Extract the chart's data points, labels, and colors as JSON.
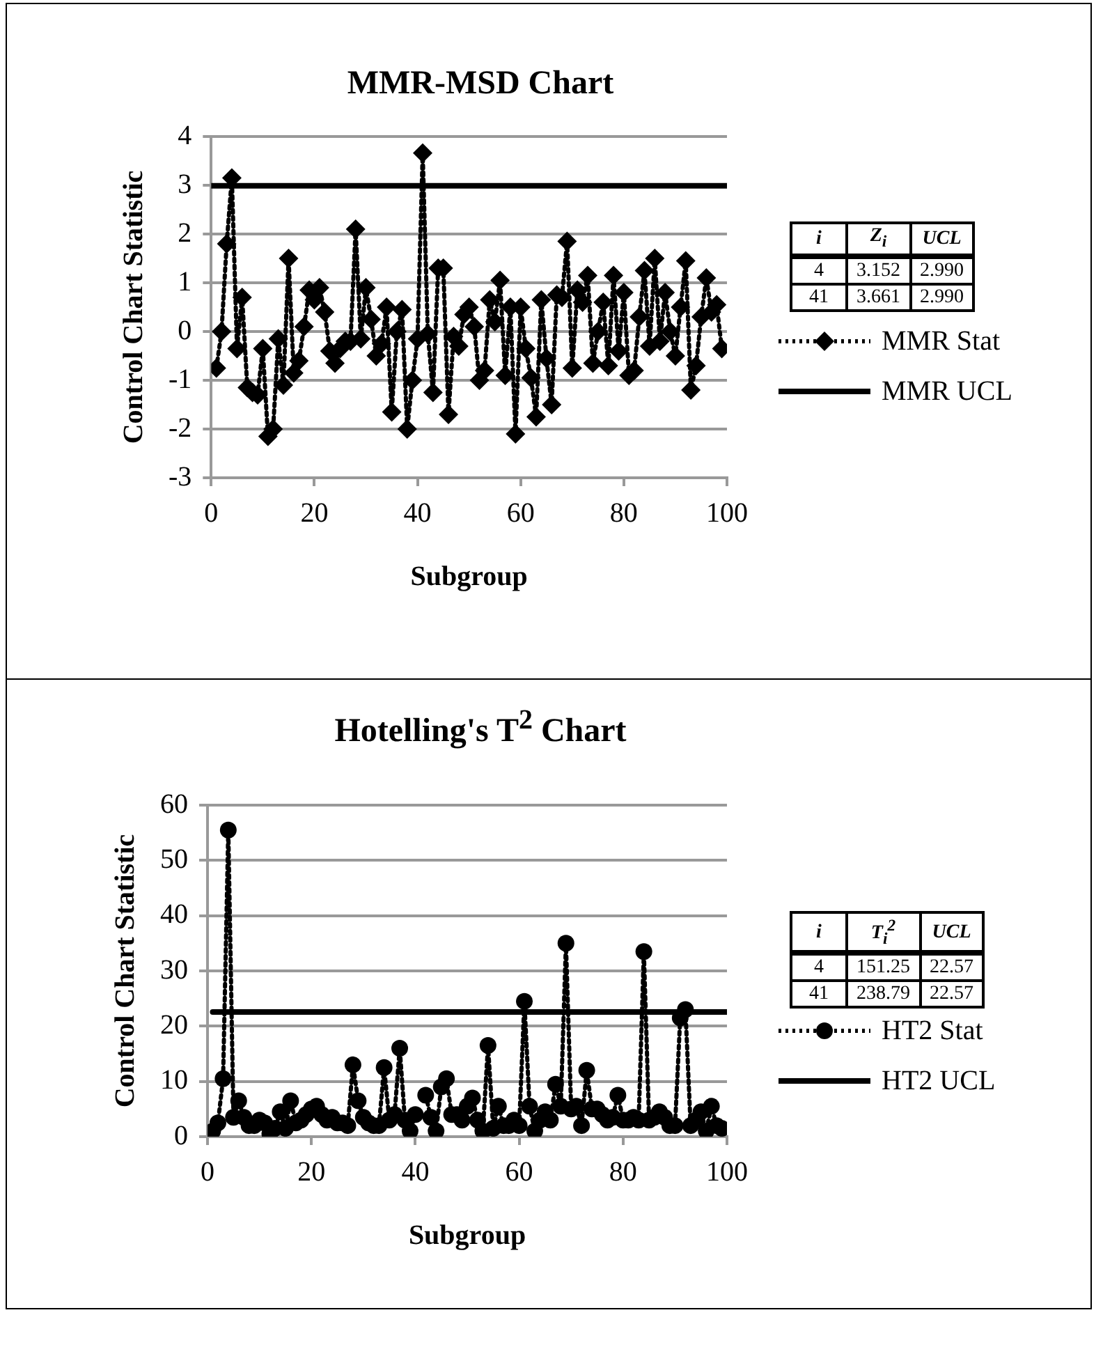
{
  "chart_data": [
    {
      "type": "line",
      "title": "MMR-MSD Chart",
      "xlabel": "Subgroup",
      "ylabel": "Control Chart Statistic",
      "xlim": [
        0,
        100
      ],
      "xticks": [
        0,
        20,
        40,
        60,
        80,
        100
      ],
      "ylim": [
        -3,
        4
      ],
      "yticks": [
        -3,
        -2,
        -1,
        0,
        1,
        2,
        3,
        4
      ],
      "grid": "y",
      "legend": "right",
      "annotations": [
        "i",
        "Z$_{i}$",
        "UCL",
        "4",
        "3.152",
        "2.990",
        "41",
        "3.661",
        "2.990"
      ],
      "series": [
        {
          "name": "MMR Stat",
          "type": "line",
          "color": "#000000",
          "marker": "diamond",
          "line_style": "dotted",
          "x": [
            1,
            2,
            3,
            4,
            5,
            6,
            7,
            8,
            9,
            10,
            11,
            12,
            13,
            14,
            15,
            16,
            17,
            18,
            19,
            20,
            21,
            22,
            23,
            24,
            25,
            26,
            27,
            28,
            29,
            30,
            31,
            32,
            33,
            34,
            35,
            36,
            37,
            38,
            39,
            40,
            41,
            42,
            43,
            44,
            45,
            46,
            47,
            48,
            49,
            50,
            51,
            52,
            53,
            54,
            55,
            56,
            57,
            58,
            59,
            60,
            61,
            62,
            63,
            64,
            65,
            66,
            67,
            68,
            69,
            70,
            71,
            72,
            73,
            74,
            75,
            76,
            77,
            78,
            79,
            80,
            81,
            82,
            83,
            84,
            85,
            86,
            87,
            88,
            89,
            90,
            91,
            92,
            93,
            94,
            95,
            96,
            97,
            98,
            99
          ],
          "values": [
            -0.75,
            0,
            1.8,
            3.15,
            -0.35,
            0.7,
            -1.15,
            -1.25,
            -1.3,
            -0.35,
            -2.15,
            -2,
            -0.15,
            -1.1,
            1.5,
            -0.85,
            -0.6,
            0.1,
            0.85,
            0.65,
            0.9,
            0.4,
            -0.4,
            -0.65,
            -0.35,
            -0.2,
            -0.2,
            2.1,
            -0.15,
            0.9,
            0.25,
            -0.5,
            -0.25,
            0.5,
            -1.65,
            0,
            0.45,
            -2,
            -1,
            -0.15,
            3.66,
            -0.05,
            -1.25,
            1.3,
            1.3,
            -1.7,
            -0.1,
            -0.3,
            0.35,
            0.5,
            0.1,
            -1,
            -0.8,
            0.65,
            0.2,
            1.05,
            -0.9,
            0.5,
            -2.1,
            0.5,
            -0.35,
            -0.95,
            -1.75,
            0.65,
            -0.55,
            -1.5,
            0.75,
            0.7,
            1.85,
            -0.75,
            0.85,
            0.6,
            1.15,
            -0.65,
            0,
            0.6,
            -0.7,
            1.15,
            -0.4,
            0.8,
            -0.9,
            -0.8,
            0.3,
            1.25,
            -0.3,
            1.5,
            -0.2,
            0.8,
            0,
            -0.5,
            0.5,
            1.45,
            -1.2,
            -0.7,
            0.3,
            1.1,
            0.4,
            0.55,
            -0.35
          ]
        },
        {
          "name": "MMR UCL",
          "type": "line",
          "color": "#000000",
          "marker": "none",
          "line_style": "solid",
          "x": [
            0,
            100
          ],
          "values": [
            2.99,
            2.99
          ]
        }
      ]
    },
    {
      "type": "line",
      "title": "Hotelling's T$^{2}$ Chart",
      "xlabel": "Subgroup",
      "ylabel": "Control Chart Statistic",
      "xlim": [
        0,
        100
      ],
      "xticks": [
        0,
        20,
        40,
        60,
        80,
        100
      ],
      "ylim": [
        0,
        60
      ],
      "yticks": [
        0,
        10,
        20,
        30,
        40,
        50,
        60
      ],
      "grid": "y",
      "legend": "right",
      "annotations": [
        "i",
        "T$_{i}$$^{2}$",
        "UCL",
        "4",
        "151.25",
        "22.57",
        "41",
        "238.79",
        "22.57"
      ],
      "series": [
        {
          "name": "HT2 Stat",
          "type": "line",
          "color": "#000000",
          "marker": "circle",
          "line_style": "dotted",
          "x": [
            1,
            2,
            3,
            4,
            5,
            6,
            7,
            8,
            9,
            10,
            11,
            12,
            13,
            14,
            15,
            16,
            17,
            18,
            19,
            20,
            21,
            22,
            23,
            24,
            25,
            26,
            27,
            28,
            29,
            30,
            31,
            32,
            33,
            34,
            35,
            36,
            37,
            38,
            39,
            40,
            41,
            42,
            43,
            44,
            45,
            46,
            47,
            48,
            49,
            50,
            51,
            52,
            53,
            54,
            55,
            56,
            57,
            58,
            59,
            60,
            61,
            62,
            63,
            64,
            65,
            66,
            67,
            68,
            69,
            70,
            71,
            72,
            73,
            74,
            75,
            76,
            77,
            78,
            79,
            80,
            81,
            82,
            83,
            84,
            85,
            86,
            87,
            88,
            89,
            90,
            91,
            92,
            93,
            94,
            95,
            96,
            97,
            98,
            99
          ],
          "values": [
            1,
            2.5,
            10.5,
            55.5,
            3.5,
            6.5,
            3.5,
            2,
            2,
            3,
            2.5,
            0.5,
            1.5,
            4.5,
            1.5,
            6.5,
            2.5,
            3,
            4,
            5,
            5.5,
            4,
            3,
            3.5,
            2.5,
            2.5,
            2,
            13,
            6.5,
            3.5,
            2.5,
            2,
            2,
            12.5,
            3,
            4,
            16,
            3,
            1,
            4,
            null,
            7.5,
            3.5,
            1,
            9,
            10.5,
            4,
            4,
            3,
            5.5,
            7,
            3,
            1,
            16.5,
            1.5,
            5.5,
            2,
            2,
            3,
            2,
            24.5,
            5.5,
            1,
            3,
            4.5,
            3,
            9.5,
            5.5,
            35,
            5,
            5.5,
            2,
            12,
            5,
            5,
            4,
            3,
            3.5,
            7.5,
            3,
            3,
            3.5,
            3,
            33.5,
            3,
            3.5,
            4.5,
            3.5,
            2,
            2,
            21.5,
            23,
            2,
            3,
            4.5,
            1,
            5.5,
            2,
            1.5
          ]
        },
        {
          "name": "HT2 UCL",
          "type": "line",
          "color": "#000000",
          "marker": "none",
          "line_style": "solid",
          "x": [
            1,
            100
          ],
          "values": [
            22.57,
            22.57
          ]
        }
      ]
    }
  ]
}
